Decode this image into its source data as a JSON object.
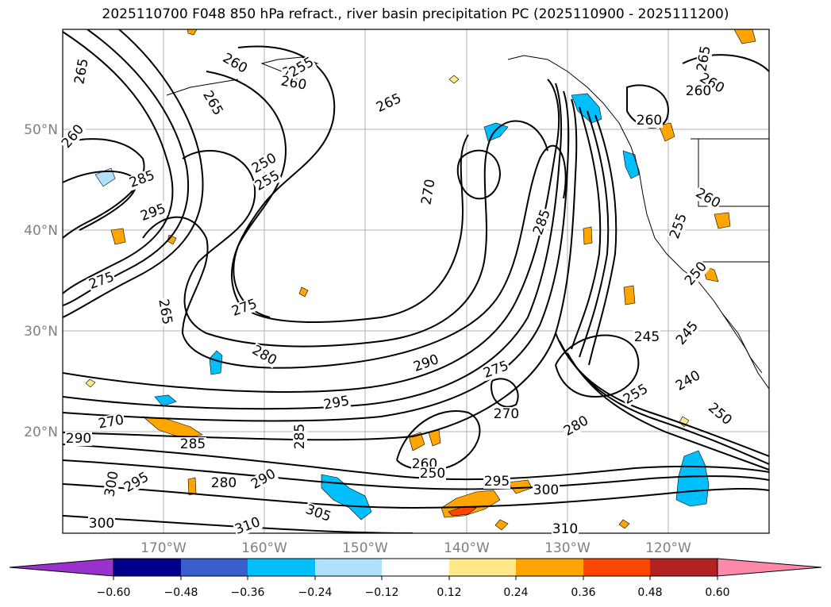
{
  "title": "2025110700 F048 850 hPa refract., river basin precipitation PC (2025110900 - 2025111200)",
  "map": {
    "lat_labels": [
      "50°N",
      "40°N",
      "30°N",
      "20°N"
    ],
    "lon_labels": [
      "170°W",
      "160°W",
      "150°W",
      "140°W",
      "130°W",
      "120°W"
    ],
    "contour_labels": [
      "265",
      "260",
      "255",
      "260",
      "265",
      "260",
      "265",
      "255",
      "250",
      "255",
      "285",
      "295",
      "265",
      "270",
      "285",
      "255",
      "260",
      "260",
      "275",
      "265",
      "260",
      "275",
      "280",
      "290",
      "275",
      "270",
      "295",
      "245",
      "255",
      "240",
      "250",
      "245",
      "260",
      "250",
      "270",
      "285",
      "310",
      "305",
      "300",
      "295",
      "300",
      "290",
      "280",
      "285",
      "295",
      "290",
      "300",
      "310",
      "260",
      "250",
      "280"
    ]
  },
  "colorbar": {
    "ticks": [
      "−0.60",
      "−0.48",
      "−0.36",
      "−0.24",
      "−0.12",
      "0.12",
      "0.24",
      "0.36",
      "0.48",
      "0.60"
    ],
    "colors": [
      "#9932cc",
      "#00008b",
      "#3a5fcd",
      "#00bfff",
      "#b0e2ff",
      "#ffffff",
      "#fee88a",
      "#ffa500",
      "#ff4500",
      "#b22222",
      "#ff88a8"
    ]
  }
}
